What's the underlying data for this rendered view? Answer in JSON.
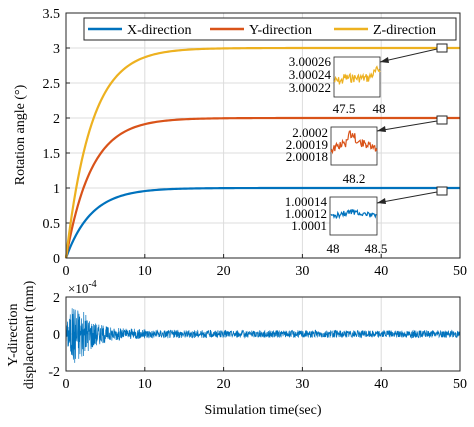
{
  "chart_data": [
    {
      "type": "line",
      "ylabel": "Rotation angle (°)",
      "xlim": [
        0,
        50
      ],
      "ylim": [
        0,
        3.5
      ],
      "xticks": [
        "0",
        "10",
        "20",
        "30",
        "40",
        "50"
      ],
      "yticks": [
        "0",
        "0.5",
        "1",
        "1.5",
        "2",
        "2.5",
        "3",
        "3.5"
      ],
      "grid": true,
      "legend_position": "top",
      "x": [
        0,
        0.5,
        1,
        1.5,
        2,
        2.5,
        3,
        4,
        5,
        6,
        7,
        8,
        10,
        12,
        15,
        20,
        25,
        30,
        40,
        50
      ],
      "series": [
        {
          "name": "X-direction",
          "color": "#0072BD",
          "values": [
            0,
            0.14,
            0.27,
            0.38,
            0.48,
            0.57,
            0.64,
            0.76,
            0.85,
            0.9,
            0.94,
            0.96,
            0.985,
            0.994,
            0.999,
            1.0,
            1.0,
            1.0,
            1.0,
            1.0
          ]
        },
        {
          "name": "Y-direction",
          "color": "#D95319",
          "values": [
            0,
            0.28,
            0.54,
            0.76,
            0.96,
            1.13,
            1.28,
            1.51,
            1.69,
            1.8,
            1.88,
            1.92,
            1.97,
            1.99,
            1.998,
            2.0,
            2.0,
            2.0,
            2.0,
            2.0
          ]
        },
        {
          "name": "Z-direction",
          "color": "#EDB120",
          "values": [
            0,
            0.42,
            0.81,
            1.15,
            1.45,
            1.7,
            1.92,
            2.27,
            2.53,
            2.7,
            2.82,
            2.89,
            2.96,
            2.985,
            2.998,
            3.0,
            3.0,
            3.0,
            3.0,
            3.0
          ]
        }
      ],
      "insets": [
        {
          "series": "Z-direction",
          "color": "#EDB120",
          "xticks": [
            "47.5",
            "48"
          ],
          "yticks": [
            "3.00026",
            "3.00024",
            "3.00022"
          ],
          "marker_at": [
            48,
            3.0
          ]
        },
        {
          "series": "Y-direction",
          "color": "#D95319",
          "xticks": [
            "48.2"
          ],
          "yticks": [
            "2.0002",
            "2.00019",
            "2.00018"
          ],
          "marker_at": [
            48,
            2.0
          ]
        },
        {
          "series": "X-direction",
          "color": "#0072BD",
          "xticks": [
            "48",
            "48.5"
          ],
          "yticks": [
            "1.00014",
            "1.00012",
            "1.0001"
          ],
          "marker_at": [
            48,
            1.0
          ]
        }
      ]
    },
    {
      "type": "line",
      "xlabel": "Simulation time(sec)",
      "ylabel_lines": [
        "Y-direction",
        "displacement (mm)"
      ],
      "xlim": [
        0,
        50
      ],
      "ylim": [
        -2,
        2
      ],
      "xticks": [
        "0",
        "10",
        "20",
        "30",
        "40",
        "50"
      ],
      "yticks": [
        "2",
        "0",
        "-2"
      ],
      "y_exponent_base": "×10",
      "y_exponent_power": "-4",
      "grid": true,
      "series": [
        {
          "name": "",
          "color": "#0072BD",
          "envelope": [
            [
              0,
              0.5
            ],
            [
              0.5,
              1.2
            ],
            [
              1,
              1.7
            ],
            [
              1.5,
              1.6
            ],
            [
              2,
              1.3
            ],
            [
              3,
              0.9
            ],
            [
              4,
              0.6
            ],
            [
              5,
              0.45
            ],
            [
              6,
              0.35
            ],
            [
              8,
              0.3
            ],
            [
              10,
              0.25
            ],
            [
              15,
              0.22
            ],
            [
              20,
              0.2
            ],
            [
              30,
              0.2
            ],
            [
              40,
              0.2
            ],
            [
              50,
              0.2
            ]
          ]
        }
      ]
    }
  ]
}
